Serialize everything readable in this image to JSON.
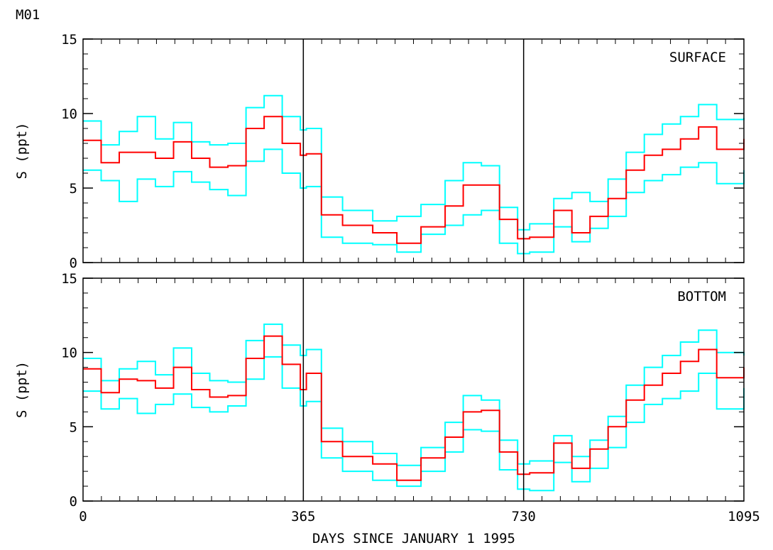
{
  "figure": {
    "title": "M01",
    "xlabel": "DAYS SINCE JANUARY 1 1995"
  },
  "colors": {
    "mean": "#ff0000",
    "bounds": "#00ffff",
    "axes": "#000000"
  },
  "chart_data": [
    {
      "type": "line",
      "label": "SURFACE",
      "ylabel": "S (ppt)",
      "xlim": [
        0,
        1095
      ],
      "ylim": [
        0,
        15
      ],
      "xticks": [
        0,
        365,
        730,
        1095
      ],
      "yticks": [
        0,
        5,
        10,
        15
      ],
      "vlines": [
        365,
        730
      ],
      "x": [
        0,
        30,
        60,
        90,
        120,
        150,
        180,
        210,
        240,
        270,
        300,
        330,
        360,
        370,
        395,
        430,
        480,
        520,
        560,
        600,
        630,
        660,
        690,
        720,
        740,
        780,
        810,
        840,
        870,
        900,
        930,
        960,
        990,
        1020,
        1050,
        1095
      ],
      "series": [
        {
          "role": "upper",
          "values": [
            9.5,
            7.9,
            8.8,
            9.8,
            8.3,
            9.4,
            8.1,
            7.9,
            8.0,
            10.4,
            11.2,
            9.8,
            8.9,
            9.0,
            4.4,
            3.5,
            2.8,
            3.1,
            3.9,
            5.5,
            6.7,
            6.5,
            3.7,
            2.2,
            2.6,
            4.3,
            4.7,
            4.1,
            5.6,
            7.4,
            8.6,
            9.3,
            9.8,
            10.6,
            9.6,
            9.7
          ]
        },
        {
          "role": "mean",
          "values": [
            8.2,
            6.7,
            7.4,
            7.4,
            7.0,
            8.1,
            7.0,
            6.4,
            6.5,
            9.0,
            9.8,
            8.0,
            7.2,
            7.3,
            3.2,
            2.5,
            2.0,
            1.3,
            2.4,
            3.8,
            5.2,
            5.2,
            2.9,
            1.6,
            1.7,
            3.5,
            2.0,
            3.1,
            4.3,
            6.2,
            7.2,
            7.6,
            8.3,
            9.1,
            7.6,
            8.3
          ]
        },
        {
          "role": "lower",
          "values": [
            6.2,
            5.5,
            4.1,
            5.6,
            5.1,
            6.1,
            5.4,
            4.9,
            4.5,
            6.8,
            7.6,
            6.0,
            5.0,
            5.1,
            1.7,
            1.3,
            1.2,
            0.7,
            1.9,
            2.5,
            3.2,
            3.5,
            1.3,
            0.6,
            0.7,
            2.4,
            1.4,
            2.3,
            3.1,
            4.7,
            5.5,
            5.9,
            6.4,
            6.7,
            5.3,
            6.2
          ]
        }
      ]
    },
    {
      "type": "line",
      "label": "BOTTOM",
      "ylabel": "S (ppt)",
      "xlim": [
        0,
        1095
      ],
      "ylim": [
        0,
        15
      ],
      "xticks": [
        0,
        365,
        730,
        1095
      ],
      "yticks": [
        0,
        5,
        10,
        15
      ],
      "vlines": [
        365,
        730
      ],
      "x": [
        0,
        30,
        60,
        90,
        120,
        150,
        180,
        210,
        240,
        270,
        300,
        330,
        360,
        370,
        395,
        430,
        480,
        520,
        560,
        600,
        630,
        660,
        690,
        720,
        740,
        780,
        810,
        840,
        870,
        900,
        930,
        960,
        990,
        1020,
        1050,
        1095
      ],
      "series": [
        {
          "role": "upper",
          "values": [
            9.6,
            8.1,
            8.9,
            9.4,
            8.5,
            10.3,
            8.6,
            8.1,
            8.0,
            10.8,
            11.9,
            10.5,
            9.8,
            10.2,
            4.9,
            4.0,
            3.2,
            2.4,
            3.6,
            5.3,
            7.1,
            6.8,
            4.1,
            2.5,
            2.7,
            4.4,
            3.0,
            4.1,
            5.7,
            7.8,
            9.0,
            9.8,
            10.7,
            11.5,
            10.0,
            9.8
          ]
        },
        {
          "role": "mean",
          "values": [
            8.9,
            7.3,
            8.2,
            8.1,
            7.6,
            9.0,
            7.5,
            7.0,
            7.1,
            9.6,
            11.1,
            9.2,
            7.5,
            8.6,
            4.0,
            3.0,
            2.5,
            1.4,
            2.9,
            4.3,
            6.0,
            6.1,
            3.3,
            1.8,
            1.9,
            3.9,
            2.2,
            3.5,
            5.0,
            6.8,
            7.8,
            8.6,
            9.4,
            10.2,
            8.3,
            9.0
          ]
        },
        {
          "role": "lower",
          "values": [
            7.4,
            6.2,
            6.9,
            5.9,
            6.5,
            7.2,
            6.3,
            6.0,
            6.4,
            8.2,
            9.7,
            7.6,
            6.4,
            6.7,
            2.9,
            2.0,
            1.4,
            1.0,
            2.0,
            3.3,
            4.8,
            4.7,
            2.1,
            0.8,
            0.7,
            2.6,
            1.3,
            2.2,
            3.6,
            5.3,
            6.5,
            6.9,
            7.4,
            8.6,
            6.2,
            7.6
          ]
        }
      ]
    }
  ]
}
